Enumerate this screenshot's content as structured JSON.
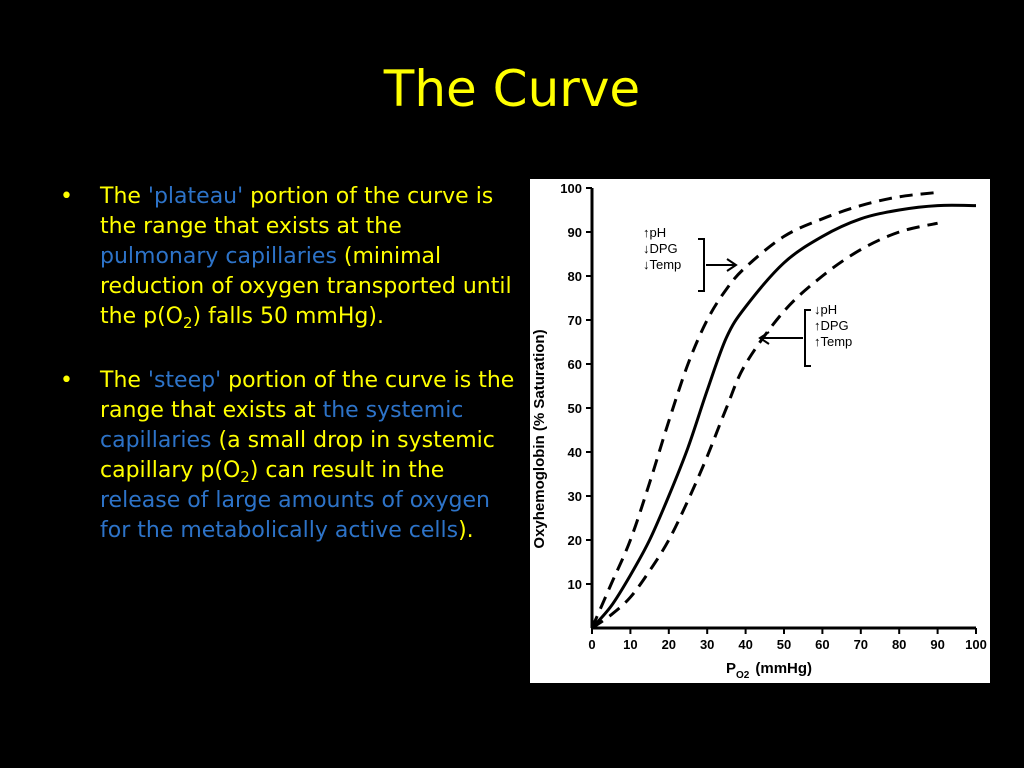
{
  "slide": {
    "title": "The Curve",
    "bullets": [
      {
        "segments": [
          {
            "text": "The ",
            "hl": false
          },
          {
            "text": "'plateau'",
            "hl": true
          },
          {
            "text": " portion of the curve is the range that exists at the ",
            "hl": false
          },
          {
            "text": "pulmonary capillaries",
            "hl": true
          },
          {
            "text": " (minimal reduction of oxygen transported until the p(O",
            "hl": false
          },
          {
            "text": "2",
            "sub": true
          },
          {
            "text": ") falls 50 mmHg).",
            "hl": false
          }
        ]
      },
      {
        "segments": [
          {
            "text": "The ",
            "hl": false
          },
          {
            "text": "'steep'",
            "hl": true
          },
          {
            "text": " portion of the curve is the range that exists at ",
            "hl": false
          },
          {
            "text": "the systemic capillaries",
            "hl": true
          },
          {
            "text": " (a small drop in systemic capillary p(O",
            "hl": false
          },
          {
            "text": "2",
            "sub": true
          },
          {
            "text": ") can result in the ",
            "hl": false
          },
          {
            "text": "release of large amounts of oxygen for the metabolically active cells",
            "hl": true
          },
          {
            "text": ").",
            "hl": false
          }
        ]
      }
    ],
    "bullet_symbol": "•",
    "colors": {
      "background": "#000000",
      "text": "#ffff00",
      "highlight": "#2d73c8"
    }
  },
  "chart_data": {
    "type": "line",
    "xlabel": "P",
    "xlabel_sub": "O2",
    "xlabel_unit": "(mmHg)",
    "ylabel": "Oxyhemoglobin   (% Saturation)",
    "xlim": [
      0,
      100
    ],
    "ylim": [
      0,
      100
    ],
    "x_ticks": [
      0,
      10,
      20,
      30,
      40,
      50,
      60,
      70,
      80,
      90,
      100
    ],
    "y_ticks": [
      10,
      20,
      30,
      40,
      50,
      60,
      70,
      80,
      90,
      100
    ],
    "grid": false,
    "series": [
      {
        "style": "solid",
        "x": [
          0,
          5,
          10,
          15,
          20,
          25,
          30,
          35,
          40,
          50,
          60,
          70,
          80,
          90,
          100
        ],
        "y": [
          0,
          5,
          12,
          20,
          30,
          41,
          54,
          66,
          73,
          83,
          89,
          93,
          95,
          96,
          96
        ]
      },
      {
        "style": "dashed",
        "x": [
          0,
          5,
          10,
          15,
          20,
          25,
          30,
          35,
          40,
          50,
          60,
          70,
          80,
          90
        ],
        "y": [
          0,
          10,
          20,
          33,
          47,
          60,
          70,
          77,
          82,
          89,
          93,
          96,
          98,
          99
        ]
      },
      {
        "style": "dashed",
        "x": [
          0,
          5,
          10,
          15,
          20,
          25,
          30,
          35,
          40,
          50,
          60,
          70,
          80,
          90
        ],
        "y": [
          0,
          3,
          7,
          13,
          20,
          29,
          39,
          50,
          60,
          72,
          80,
          86,
          90,
          92
        ]
      }
    ],
    "annotations": [
      {
        "lines": [
          "↑pH",
          "↓DPG",
          "↓Temp"
        ],
        "points_to": "left-shifted curve"
      },
      {
        "lines": [
          "↓pH",
          "↑DPG",
          "↑Temp"
        ],
        "points_to": "right-shifted curve"
      }
    ]
  }
}
